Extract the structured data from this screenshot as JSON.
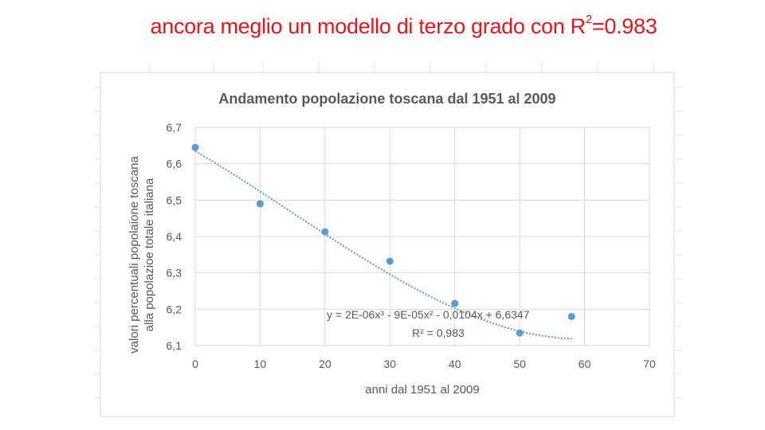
{
  "slide": {
    "title_main": "ancora meglio un modello di terzo grado con R",
    "title_sup": "2",
    "title_end": "=0.983",
    "title_color": "#e0171c"
  },
  "chart_data": {
    "type": "scatter",
    "title": "Andamento popolazione toscana dal 1951 al 2009",
    "xlabel": "anni dal 1951 al 2009",
    "ylabel_line1": "valori percentuali popolaione toscana",
    "ylabel_line2": "alla popolazioe totale italiana",
    "xlim": [
      0,
      70
    ],
    "ylim": [
      6.1,
      6.7
    ],
    "x_ticks": [
      0,
      10,
      20,
      30,
      40,
      50,
      60,
      70
    ],
    "y_ticks": [
      6.1,
      6.2,
      6.3,
      6.4,
      6.5,
      6.6,
      6.7
    ],
    "x_tick_labels": [
      "0",
      "10",
      "20",
      "30",
      "40",
      "50",
      "60",
      "70"
    ],
    "y_tick_labels": [
      "6,1",
      "6,2",
      "6,3",
      "6,4",
      "6,5",
      "6,6",
      "6,7"
    ],
    "grid": true,
    "marker_color": "#5b9bd5",
    "trend_color": "#5b9bd5",
    "points": [
      {
        "x": 0,
        "y": 6.645
      },
      {
        "x": 10,
        "y": 6.49
      },
      {
        "x": 20,
        "y": 6.413
      },
      {
        "x": 30,
        "y": 6.332
      },
      {
        "x": 40,
        "y": 6.216
      },
      {
        "x": 50,
        "y": 6.135
      },
      {
        "x": 58,
        "y": 6.18
      }
    ],
    "trendline": {
      "type": "polynomial",
      "degree": 3,
      "coefficients": [
        2e-06,
        -9e-05,
        -0.0104,
        6.6347
      ],
      "x_range": [
        0,
        58
      ],
      "equation_label": "y = 2E-06x³ - 9E-05x² - 0,0104x + 6,6347",
      "r2_label": "R² = 0,983"
    }
  }
}
